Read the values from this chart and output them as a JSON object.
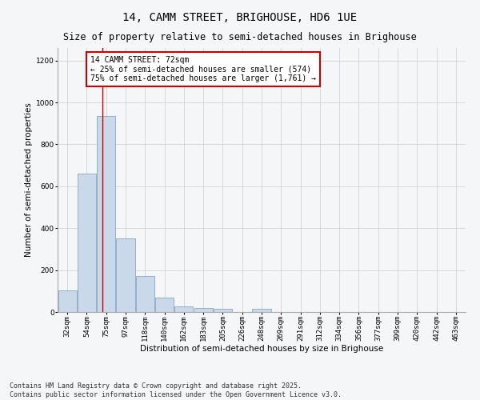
{
  "title": "14, CAMM STREET, BRIGHOUSE, HD6 1UE",
  "subtitle": "Size of property relative to semi-detached houses in Brighouse",
  "xlabel": "Distribution of semi-detached houses by size in Brighouse",
  "ylabel": "Number of semi-detached properties",
  "bar_labels": [
    "32sqm",
    "54sqm",
    "75sqm",
    "97sqm",
    "118sqm",
    "140sqm",
    "162sqm",
    "183sqm",
    "205sqm",
    "226sqm",
    "248sqm",
    "269sqm",
    "291sqm",
    "312sqm",
    "334sqm",
    "356sqm",
    "377sqm",
    "399sqm",
    "420sqm",
    "442sqm",
    "463sqm"
  ],
  "bar_values": [
    105,
    660,
    935,
    350,
    170,
    70,
    25,
    20,
    15,
    0,
    15,
    0,
    0,
    0,
    0,
    0,
    0,
    0,
    0,
    0,
    0
  ],
  "bar_color": "#c9d9ea",
  "bar_edge_color": "#7799bb",
  "grid_color": "#cccccc",
  "annotation_text": "14 CAMM STREET: 72sqm\n← 25% of semi-detached houses are smaller (574)\n75% of semi-detached houses are larger (1,761) →",
  "annotation_box_color": "#ffffff",
  "annotation_box_edge_color": "#cc0000",
  "red_line_x": 1.82,
  "ylim": [
    0,
    1260
  ],
  "yticks": [
    0,
    200,
    400,
    600,
    800,
    1000,
    1200
  ],
  "footer_text": "Contains HM Land Registry data © Crown copyright and database right 2025.\nContains public sector information licensed under the Open Government Licence v3.0.",
  "background_color": "#f4f6f8",
  "plot_background_color": "#f4f6f8",
  "title_fontsize": 10,
  "subtitle_fontsize": 8.5,
  "label_fontsize": 7.5,
  "tick_fontsize": 6.5,
  "footer_fontsize": 6.0,
  "annotation_fontsize": 7.0
}
